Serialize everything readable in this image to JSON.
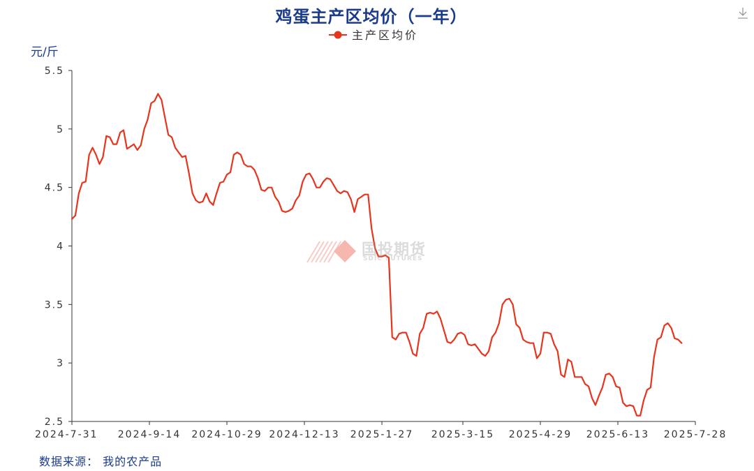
{
  "chart_data": {
    "type": "line",
    "title": "鸡蛋主产区均价（一年）",
    "ylabel": "元/斤",
    "ylim": [
      2.5,
      5.5
    ],
    "yticks": [
      "5.5",
      "5",
      "4.5",
      "4",
      "3.5",
      "3",
      "2.5"
    ],
    "xticks": [
      "2024-7-31",
      "2024-9-14",
      "2024-10-29",
      "2024-12-13",
      "2025-1-27",
      "2025-3-15",
      "2025-4-29",
      "2025-6-13",
      "2025-7-28"
    ],
    "legend_position": "top-center",
    "grid": false,
    "color": "#e8341c",
    "series": [
      {
        "name": "主产区均价",
        "points": [
          [
            "2024-7-31",
            4.23
          ],
          [
            "2024-8-2",
            4.26
          ],
          [
            "2024-8-4",
            4.45
          ],
          [
            "2024-8-6",
            4.54
          ],
          [
            "2024-8-8",
            4.55
          ],
          [
            "2024-8-10",
            4.78
          ],
          [
            "2024-8-12",
            4.84
          ],
          [
            "2024-8-14",
            4.78
          ],
          [
            "2024-8-16",
            4.7
          ],
          [
            "2024-8-18",
            4.76
          ],
          [
            "2024-8-20",
            4.94
          ],
          [
            "2024-8-22",
            4.93
          ],
          [
            "2024-8-24",
            4.87
          ],
          [
            "2024-8-26",
            4.87
          ],
          [
            "2024-8-28",
            4.97
          ],
          [
            "2024-8-30",
            4.99
          ],
          [
            "2024-9-1",
            4.83
          ],
          [
            "2024-9-3",
            4.85
          ],
          [
            "2024-9-5",
            4.87
          ],
          [
            "2024-9-7",
            4.82
          ],
          [
            "2024-9-9",
            4.86
          ],
          [
            "2024-9-11",
            5.0
          ],
          [
            "2024-9-13",
            5.08
          ],
          [
            "2024-9-15",
            5.22
          ],
          [
            "2024-9-17",
            5.24
          ],
          [
            "2024-9-19",
            5.3
          ],
          [
            "2024-9-21",
            5.25
          ],
          [
            "2024-9-23",
            5.1
          ],
          [
            "2024-9-25",
            4.95
          ],
          [
            "2024-9-27",
            4.93
          ],
          [
            "2024-9-29",
            4.84
          ],
          [
            "2024-10-1",
            4.8
          ],
          [
            "2024-10-3",
            4.76
          ],
          [
            "2024-10-5",
            4.77
          ],
          [
            "2024-10-7",
            4.62
          ],
          [
            "2024-10-9",
            4.45
          ],
          [
            "2024-10-11",
            4.39
          ],
          [
            "2024-10-13",
            4.37
          ],
          [
            "2024-10-15",
            4.38
          ],
          [
            "2024-10-17",
            4.45
          ],
          [
            "2024-10-19",
            4.38
          ],
          [
            "2024-10-21",
            4.35
          ],
          [
            "2024-10-23",
            4.45
          ],
          [
            "2024-10-25",
            4.54
          ],
          [
            "2024-10-27",
            4.55
          ],
          [
            "2024-10-29",
            4.61
          ],
          [
            "2024-10-31",
            4.63
          ],
          [
            "2024-11-2",
            4.78
          ],
          [
            "2024-11-4",
            4.8
          ],
          [
            "2024-11-6",
            4.78
          ],
          [
            "2024-11-8",
            4.7
          ],
          [
            "2024-11-10",
            4.68
          ],
          [
            "2024-11-12",
            4.68
          ],
          [
            "2024-11-14",
            4.65
          ],
          [
            "2024-11-16",
            4.58
          ],
          [
            "2024-11-18",
            4.48
          ],
          [
            "2024-11-20",
            4.47
          ],
          [
            "2024-11-22",
            4.5
          ],
          [
            "2024-11-24",
            4.5
          ],
          [
            "2024-11-26",
            4.42
          ],
          [
            "2024-11-28",
            4.38
          ],
          [
            "2024-11-30",
            4.3
          ],
          [
            "2024-12-2",
            4.29
          ],
          [
            "2024-12-4",
            4.3
          ],
          [
            "2024-12-6",
            4.32
          ],
          [
            "2024-12-8",
            4.39
          ],
          [
            "2024-12-10",
            4.43
          ],
          [
            "2024-12-12",
            4.55
          ],
          [
            "2024-12-14",
            4.61
          ],
          [
            "2024-12-16",
            4.62
          ],
          [
            "2024-12-18",
            4.57
          ],
          [
            "2024-12-20",
            4.5
          ],
          [
            "2024-12-22",
            4.5
          ],
          [
            "2024-12-24",
            4.55
          ],
          [
            "2024-12-26",
            4.58
          ],
          [
            "2024-12-28",
            4.57
          ],
          [
            "2024-12-30",
            4.52
          ],
          [
            "2025-1-1",
            4.47
          ],
          [
            "2025-1-3",
            4.45
          ],
          [
            "2025-1-5",
            4.47
          ],
          [
            "2025-1-7",
            4.46
          ],
          [
            "2025-1-9",
            4.4
          ],
          [
            "2025-1-11",
            4.29
          ],
          [
            "2025-1-13",
            4.4
          ],
          [
            "2025-1-15",
            4.42
          ],
          [
            "2025-1-17",
            4.44
          ],
          [
            "2025-1-19",
            4.44
          ],
          [
            "2025-1-21",
            4.15
          ],
          [
            "2025-1-23",
            3.98
          ],
          [
            "2025-1-25",
            3.91
          ],
          [
            "2025-1-27",
            3.91
          ],
          [
            "2025-1-29",
            3.92
          ],
          [
            "2025-1-31",
            3.9
          ],
          [
            "2025-2-2",
            3.22
          ],
          [
            "2025-2-4",
            3.2
          ],
          [
            "2025-2-6",
            3.25
          ],
          [
            "2025-2-8",
            3.26
          ],
          [
            "2025-2-10",
            3.26
          ],
          [
            "2025-2-12",
            3.18
          ],
          [
            "2025-2-14",
            3.08
          ],
          [
            "2025-2-16",
            3.06
          ],
          [
            "2025-2-18",
            3.25
          ],
          [
            "2025-2-20",
            3.3
          ],
          [
            "2025-2-22",
            3.42
          ],
          [
            "2025-2-24",
            3.43
          ],
          [
            "2025-2-26",
            3.42
          ],
          [
            "2025-2-28",
            3.44
          ],
          [
            "2025-3-2",
            3.38
          ],
          [
            "2025-3-4",
            3.28
          ],
          [
            "2025-3-6",
            3.18
          ],
          [
            "2025-3-8",
            3.17
          ],
          [
            "2025-3-10",
            3.2
          ],
          [
            "2025-3-12",
            3.25
          ],
          [
            "2025-3-14",
            3.26
          ],
          [
            "2025-3-16",
            3.24
          ],
          [
            "2025-3-18",
            3.16
          ],
          [
            "2025-3-20",
            3.15
          ],
          [
            "2025-3-22",
            3.16
          ],
          [
            "2025-3-24",
            3.12
          ],
          [
            "2025-3-26",
            3.08
          ],
          [
            "2025-3-28",
            3.06
          ],
          [
            "2025-3-30",
            3.1
          ],
          [
            "2025-4-1",
            3.22
          ],
          [
            "2025-4-3",
            3.26
          ],
          [
            "2025-4-5",
            3.34
          ],
          [
            "2025-4-7",
            3.5
          ],
          [
            "2025-4-9",
            3.54
          ],
          [
            "2025-4-11",
            3.55
          ],
          [
            "2025-4-13",
            3.5
          ],
          [
            "2025-4-15",
            3.33
          ],
          [
            "2025-4-17",
            3.3
          ],
          [
            "2025-4-19",
            3.2
          ],
          [
            "2025-4-21",
            3.18
          ],
          [
            "2025-4-23",
            3.17
          ],
          [
            "2025-4-25",
            3.17
          ],
          [
            "2025-4-27",
            3.04
          ],
          [
            "2025-4-29",
            3.08
          ],
          [
            "2025-5-1",
            3.26
          ],
          [
            "2025-5-3",
            3.26
          ],
          [
            "2025-5-5",
            3.25
          ],
          [
            "2025-5-7",
            3.16
          ],
          [
            "2025-5-9",
            3.1
          ],
          [
            "2025-5-11",
            2.9
          ],
          [
            "2025-5-13",
            2.88
          ],
          [
            "2025-5-15",
            3.03
          ],
          [
            "2025-5-17",
            3.01
          ],
          [
            "2025-5-19",
            2.88
          ],
          [
            "2025-5-21",
            2.88
          ],
          [
            "2025-5-23",
            2.88
          ],
          [
            "2025-5-25",
            2.82
          ],
          [
            "2025-5-27",
            2.8
          ],
          [
            "2025-5-29",
            2.7
          ],
          [
            "2025-5-31",
            2.64
          ],
          [
            "2025-6-2",
            2.72
          ],
          [
            "2025-6-4",
            2.79
          ],
          [
            "2025-6-6",
            2.9
          ],
          [
            "2025-6-8",
            2.91
          ],
          [
            "2025-6-10",
            2.88
          ],
          [
            "2025-6-12",
            2.8
          ],
          [
            "2025-6-14",
            2.79
          ],
          [
            "2025-6-16",
            2.66
          ],
          [
            "2025-6-18",
            2.63
          ],
          [
            "2025-6-20",
            2.64
          ],
          [
            "2025-6-22",
            2.63
          ],
          [
            "2025-6-24",
            2.55
          ],
          [
            "2025-6-26",
            2.55
          ],
          [
            "2025-6-28",
            2.68
          ],
          [
            "2025-6-30",
            2.77
          ],
          [
            "2025-7-2",
            2.79
          ],
          [
            "2025-7-4",
            3.05
          ],
          [
            "2025-7-6",
            3.2
          ],
          [
            "2025-7-8",
            3.22
          ],
          [
            "2025-7-10",
            3.32
          ],
          [
            "2025-7-12",
            3.34
          ],
          [
            "2025-7-14",
            3.3
          ],
          [
            "2025-7-16",
            3.21
          ],
          [
            "2025-7-18",
            3.2
          ],
          [
            "2025-7-20",
            3.17
          ]
        ]
      }
    ]
  },
  "source": "数据来源：  我的农产品",
  "watermark": {
    "name_cn": "国投期货",
    "name_en": "SDIC FUTURES"
  },
  "icons": {
    "download": "download-icon"
  }
}
